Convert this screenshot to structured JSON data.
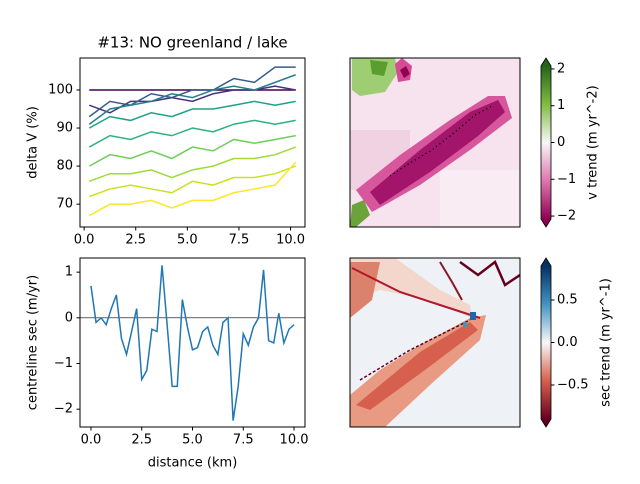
{
  "chart_data": [
    {
      "type": "line",
      "title": "#13: NO greenland / lake",
      "y_label": "delta V (%)",
      "x": [
        0.25,
        1.25,
        2.25,
        3.25,
        4.25,
        5.25,
        6.25,
        7.25,
        8.25,
        9.25,
        10.25
      ],
      "series": [
        {
          "color": "#440154",
          "values": [
            100,
            100,
            100,
            100,
            100,
            100,
            100,
            100,
            100,
            100,
            100
          ]
        },
        {
          "color": "#46327e",
          "values": [
            96,
            94,
            97,
            97,
            98,
            97,
            99,
            100,
            100,
            101,
            100
          ]
        },
        {
          "color": "#365c8d",
          "values": [
            93,
            97,
            96,
            99,
            98,
            100,
            100,
            103,
            102,
            106,
            106
          ]
        },
        {
          "color": "#277f8e",
          "values": [
            91,
            95,
            96,
            97,
            99,
            98,
            100,
            101,
            100,
            102,
            104
          ]
        },
        {
          "color": "#1fa187",
          "values": [
            90,
            93,
            92,
            94,
            93,
            95,
            95,
            96,
            97,
            96,
            97
          ]
        },
        {
          "color": "#2db27d",
          "values": [
            85,
            88,
            87,
            89,
            88,
            90,
            89,
            91,
            92,
            91,
            92
          ]
        },
        {
          "color": "#6ece58",
          "values": [
            80,
            83,
            82,
            84,
            82,
            85,
            84,
            87,
            86,
            87,
            88
          ]
        },
        {
          "color": "#9fda3a",
          "values": [
            76,
            78,
            78,
            79,
            77,
            79,
            80,
            82,
            82,
            83,
            85
          ]
        },
        {
          "color": "#cae11f",
          "values": [
            72,
            74,
            75,
            74,
            73,
            76,
            75,
            77,
            77,
            78,
            80
          ]
        },
        {
          "color": "#fde725",
          "values": [
            67,
            70,
            70,
            71,
            69,
            71,
            71,
            73,
            74,
            75,
            81
          ]
        }
      ],
      "xlim": [
        -0.2,
        10.7
      ],
      "ylim": [
        64,
        108.4
      ],
      "xticks": [
        {
          "value": 0,
          "label": "0.0"
        },
        2.5,
        {
          "value": 5,
          "label": "5.0"
        },
        7.5,
        {
          "value": 10,
          "label": "10.0"
        }
      ],
      "yticks": [
        70,
        80,
        90,
        100
      ]
    },
    {
      "type": "heatmap",
      "colorbar": {
        "label": "v trend (m yr^-2)",
        "clim": [
          -2.08,
          2.08
        ],
        "extend": "both",
        "cmap": [
          "#8e0152",
          "#de77ae",
          "#f7f7f7",
          "#7fbc41",
          "#276419"
        ],
        "ticks": [
          {
            "value": -2,
            "label": "−2"
          },
          {
            "value": -1,
            "label": "−1"
          },
          0,
          1,
          2
        ]
      }
    },
    {
      "type": "line",
      "y_label": "centreline sec (m/yr)",
      "x_label": "distance (km)",
      "x": [
        0,
        0.25,
        0.5,
        0.75,
        1,
        1.25,
        1.5,
        1.75,
        2,
        2.25,
        2.5,
        2.75,
        3,
        3.25,
        3.5,
        3.75,
        4,
        4.25,
        4.5,
        4.75,
        5,
        5.25,
        5.5,
        5.75,
        6,
        6.25,
        6.5,
        6.75,
        7,
        7.25,
        7.5,
        7.75,
        8,
        8.25,
        8.5,
        8.75,
        9,
        9.25,
        9.5,
        9.75,
        10
      ],
      "series": [
        {
          "color": "#1f77b4",
          "values": [
            0.7,
            -0.1,
            0.0,
            -0.15,
            0.2,
            0.5,
            -0.45,
            -0.8,
            -0.3,
            0.2,
            -1.35,
            -1.15,
            -0.25,
            -0.3,
            1.15,
            -0.15,
            -1.5,
            -1.5,
            0.4,
            -0.2,
            -0.7,
            -0.65,
            -0.3,
            -0.2,
            -0.6,
            -0.8,
            -0.1,
            0.0,
            -2.25,
            -1.5,
            -0.35,
            -0.6,
            -0.2,
            0.0,
            1.05,
            -0.5,
            -0.55,
            0.1,
            -0.55,
            -0.25,
            -0.15
          ]
        }
      ],
      "hline": 0,
      "xlim": [
        -0.54,
        10.54
      ],
      "ylim": [
        -2.39,
        1.31
      ],
      "xticks": [
        {
          "value": 0,
          "label": "0.0"
        },
        2.5,
        {
          "value": 5,
          "label": "5.0"
        },
        7.5,
        {
          "value": 10,
          "label": "10.0"
        }
      ],
      "yticks": [
        {
          "value": -2,
          "label": "−2"
        },
        {
          "value": -1,
          "label": "−1"
        },
        0,
        1
      ]
    },
    {
      "type": "heatmap",
      "colorbar": {
        "label": "sec trend (m yr^-1)",
        "clim": [
          -0.9,
          0.9
        ],
        "extend": "both",
        "cmap": [
          "#67001f",
          "#d6604d",
          "#f7f7f7",
          "#4393c3",
          "#053061"
        ],
        "ticks": [
          {
            "value": -0.5,
            "label": "−0.5"
          },
          {
            "value": 0,
            "label": "0.0"
          },
          0.5
        ]
      }
    }
  ]
}
